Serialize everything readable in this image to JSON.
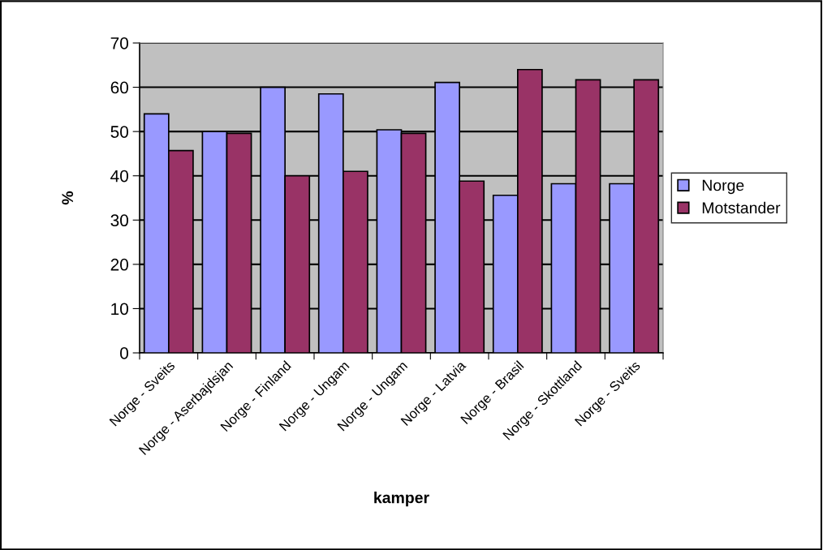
{
  "chart_data": {
    "type": "bar",
    "xlabel": "kamper",
    "ylabel": "%",
    "categories": [
      "Norge - Sveits",
      "Norge - Aserbajdsjan",
      "Norge - Finland",
      "Norge - Ungam",
      "Norge - Ungam",
      "Norge - Latvia",
      "Norge - Brasil",
      "Norge - Skottland",
      "Norge - Sveits"
    ],
    "series": [
      {
        "name": "Norge",
        "color": "#9999ff",
        "values": [
          54.0,
          50.0,
          60.0,
          58.5,
          50.4,
          61.1,
          35.6,
          38.2,
          38.2
        ]
      },
      {
        "name": "Motstander",
        "color": "#993366",
        "values": [
          45.7,
          49.6,
          40.0,
          41.0,
          49.6,
          38.8,
          64.0,
          61.7,
          61.7
        ]
      }
    ],
    "ylim": [
      0,
      70
    ],
    "yticks": [
      0,
      10,
      20,
      30,
      40,
      50,
      60,
      70
    ],
    "grid": "y",
    "legend": "right"
  }
}
